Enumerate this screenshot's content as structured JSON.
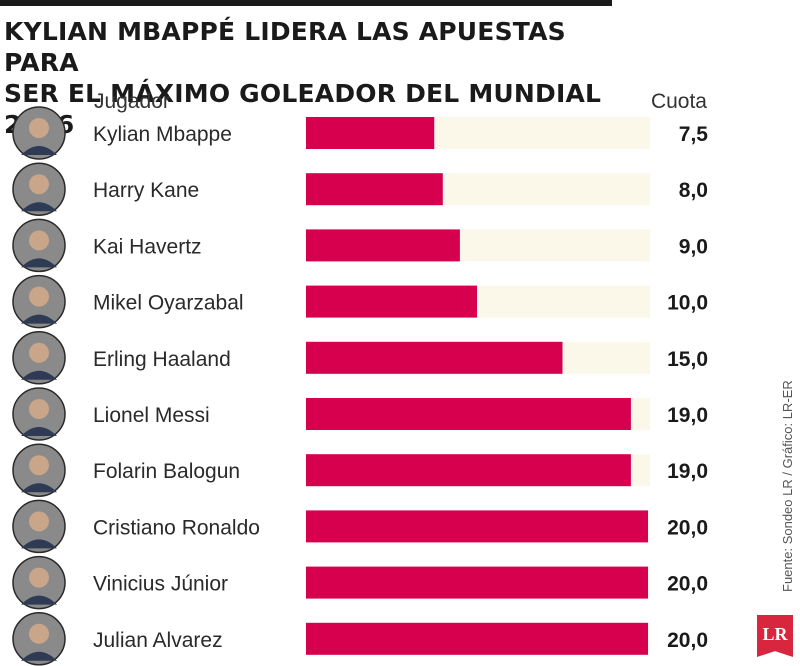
{
  "title_lines": [
    "KYLIAN MBAPPÉ LIDERA LAS APUESTAS PARA",
    "SER EL MÁXIMO GOLEADOR DEL MUNDIAL 2026"
  ],
  "columns": {
    "player": "Jugador",
    "odds": "Cuota"
  },
  "source": "Fuente: Sondeo LR / Gráfico: LR-ER",
  "logo_text": "LR",
  "colors": {
    "bar": "#d6004f",
    "track": "#fbf8ea",
    "title": "#1a1a1a",
    "logo": "#d7263d"
  },
  "chart_data": {
    "type": "bar",
    "orientation": "horizontal",
    "categories": [
      "Kylian Mbappe",
      "Harry Kane",
      "Kai Havertz",
      "Mikel Oyarzabal",
      "Erling Haaland",
      "Lionel Messi",
      "Folarin Balogun",
      "Cristiano Ronaldo",
      "Vinicius Júnior",
      "Julian Alvarez"
    ],
    "values": [
      7.5,
      8.0,
      9.0,
      10.0,
      15.0,
      19.0,
      19.0,
      20.0,
      20.0,
      20.0
    ],
    "value_labels": [
      "7,5",
      "8,0",
      "9,0",
      "10,0",
      "15,0",
      "19,0",
      "19,0",
      "20,0",
      "20,0",
      "20,0"
    ],
    "xlim": [
      0,
      20
    ],
    "grid": false,
    "legend": "none"
  }
}
